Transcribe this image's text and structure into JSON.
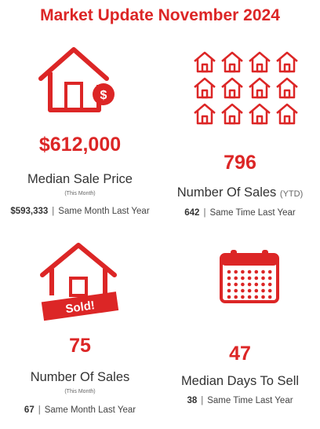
{
  "title": "Market Update November 2024",
  "median_price": {
    "value": "$612,000",
    "label": "Median Sale Price",
    "sub": "(This Month)",
    "compare_value": "$593,333",
    "compare_text": "Same Month Last Year",
    "icon": "house-dollar-icon"
  },
  "ytd_sales": {
    "value": "796",
    "label": "Number Of Sales",
    "label_suffix": "(YTD)",
    "compare_value": "642",
    "compare_text": "Same Time Last Year",
    "icon": "houses-grid-icon"
  },
  "monthly_sales": {
    "value": "75",
    "label": "Number Of Sales",
    "sub": "(This Month)",
    "compare_value": "67",
    "compare_text": "Same Month Last Year",
    "icon": "house-sold-icon",
    "badge": "Sold!"
  },
  "days_to_sell": {
    "value": "47",
    "label": "Median Days To Sell",
    "compare_value": "38",
    "compare_text": "Same Time Last Year",
    "icon": "calendar-icon"
  },
  "colors": {
    "accent": "#dc2626",
    "text": "#333333"
  }
}
